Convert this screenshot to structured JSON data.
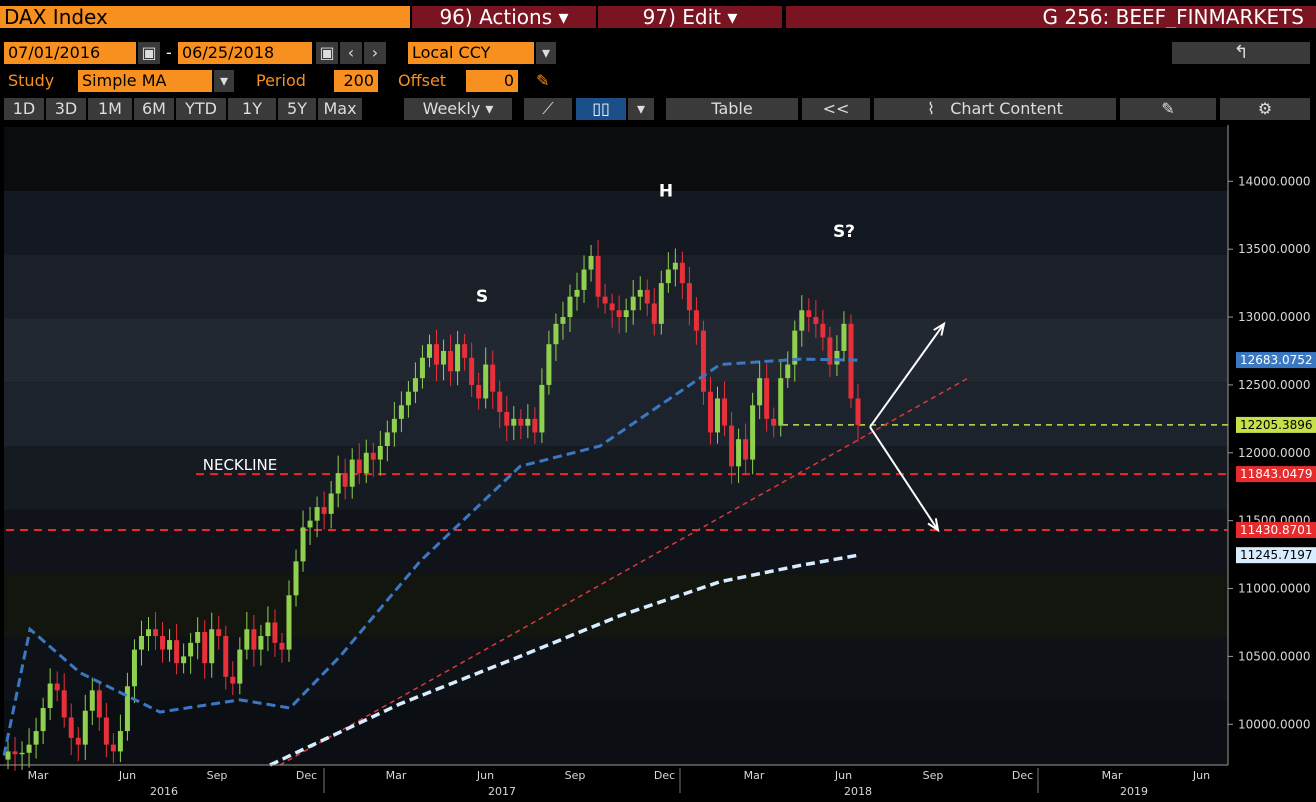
{
  "header": {
    "security": "DAX Index",
    "actions": "96) Actions",
    "edit": "97) Edit",
    "title": "G 256: BEEF_FINMARKETS",
    "back_icon": "back-arrow-icon"
  },
  "dates": {
    "start": "07/01/2016",
    "end": "06/25/2018",
    "currency": "Local CCY",
    "separator": "-"
  },
  "study": {
    "label": "Study",
    "value": "Simple MA",
    "period_label": "Period",
    "period": "200",
    "offset_label": "Offset",
    "offset": "0"
  },
  "toolbar": {
    "ranges": [
      "1D",
      "3D",
      "1M",
      "6M",
      "YTD",
      "1Y",
      "5Y",
      "Max"
    ],
    "frequency": "Weekly",
    "table": "Table",
    "chart_content": "Chart Content",
    "collapse": "<<"
  },
  "annotations": {
    "left_shoulder": "S",
    "head": "H",
    "right_shoulder": "S?",
    "neckline": "NECKLINE"
  },
  "colors": {
    "up": "#8fd14f",
    "down": "#e8303a",
    "ma_fast": "#3a78c4",
    "ma_slow": "#d8ecff",
    "accent": "#f7901e",
    "dashed_level": "#e52b2b",
    "current": "#c5e14a"
  },
  "chart_data": {
    "type": "candlestick",
    "frequency": "weekly",
    "ylim": [
      9700,
      14400
    ],
    "yticks": [
      {
        "value": 14000,
        "label": "14000.0000"
      },
      {
        "value": 13500,
        "label": "13500.0000"
      },
      {
        "value": 13000,
        "label": "13000.0000"
      },
      {
        "value": 12500,
        "label": "12500.0000"
      },
      {
        "value": 12000,
        "label": "12000.0000"
      },
      {
        "value": 11500,
        "label": "11500.0000"
      },
      {
        "value": 11000,
        "label": "11000.0000"
      },
      {
        "value": 10500,
        "label": "10500.0000"
      },
      {
        "value": 10000,
        "label": "10000.0000"
      }
    ],
    "x_months": [
      "Mar",
      "Jun",
      "Sep",
      "Dec",
      "Mar",
      "Jun",
      "Sep",
      "Dec",
      "Mar",
      "Jun",
      "Sep",
      "Dec",
      "Mar",
      "Jun"
    ],
    "x_years": [
      "2016",
      "2017",
      "2018",
      "2019"
    ],
    "closes": [
      9800,
      9780,
      9790,
      9850,
      9950,
      10120,
      10300,
      10250,
      10050,
      9900,
      9850,
      10100,
      10250,
      10050,
      9850,
      9800,
      9950,
      10280,
      10550,
      10650,
      10700,
      10650,
      10550,
      10620,
      10450,
      10500,
      10600,
      10680,
      10450,
      10700,
      10650,
      10350,
      10300,
      10550,
      10700,
      10550,
      10650,
      10750,
      10600,
      10550,
      10950,
      11200,
      11450,
      11500,
      11600,
      11550,
      11700,
      11850,
      11750,
      11950,
      11850,
      12000,
      11950,
      12050,
      12150,
      12250,
      12350,
      12450,
      12550,
      12700,
      12800,
      12650,
      12750,
      12600,
      12800,
      12700,
      12500,
      12400,
      12650,
      12450,
      12300,
      12200,
      12250,
      12200,
      12250,
      12150,
      12500,
      12800,
      12950,
      13000,
      13150,
      13200,
      13350,
      13450,
      13150,
      13100,
      13050,
      13000,
      13050,
      13150,
      13200,
      13100,
      12950,
      13250,
      13350,
      13400,
      13250,
      13050,
      12900,
      12450,
      12150,
      12400,
      12200,
      11900,
      12100,
      11950,
      12350,
      12550,
      12250,
      12200,
      12550,
      12650,
      12900,
      13050,
      13000,
      12950,
      12850,
      12650,
      12750,
      12950,
      12400,
      12205
    ],
    "markers": [
      {
        "label": "12683.0752",
        "value": 12683.0752,
        "kind": "ma_fast"
      },
      {
        "label": "12205.3896",
        "value": 12205.3896,
        "kind": "current"
      },
      {
        "label": "11843.0479",
        "value": 11843.0479,
        "kind": "level"
      },
      {
        "label": "11430.8701",
        "value": 11430.8701,
        "kind": "level"
      },
      {
        "label": "11245.7197",
        "value": 11245.7197,
        "kind": "ma_slow"
      }
    ],
    "levels": [
      11843.0479,
      11430.8701
    ],
    "current": 12205.3896
  }
}
